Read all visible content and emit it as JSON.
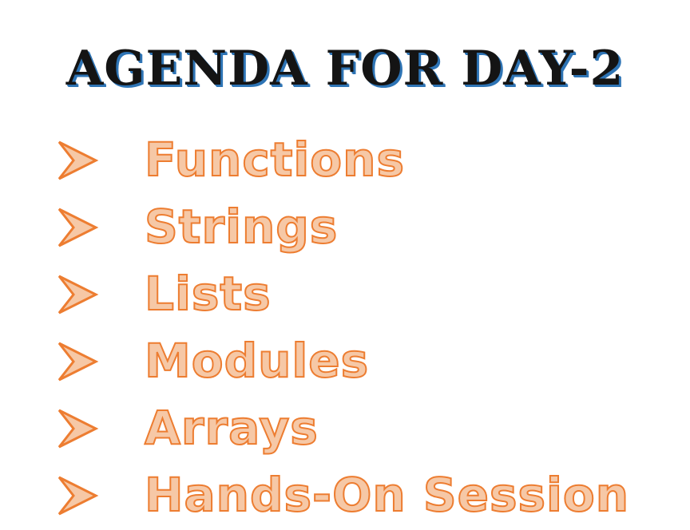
{
  "title": "AGENDA FOR DAY-2",
  "agenda": {
    "bullet_icon": "arrowhead-bullet-icon",
    "items": [
      "Functions",
      "Strings",
      "Lists",
      "Modules",
      "Arrays",
      "Hands-On Session"
    ]
  },
  "colors": {
    "title_text": "#141414",
    "title_shadow": "#2e74b5",
    "item_fill": "#f6c8a6",
    "item_outline": "#ed7d31"
  }
}
